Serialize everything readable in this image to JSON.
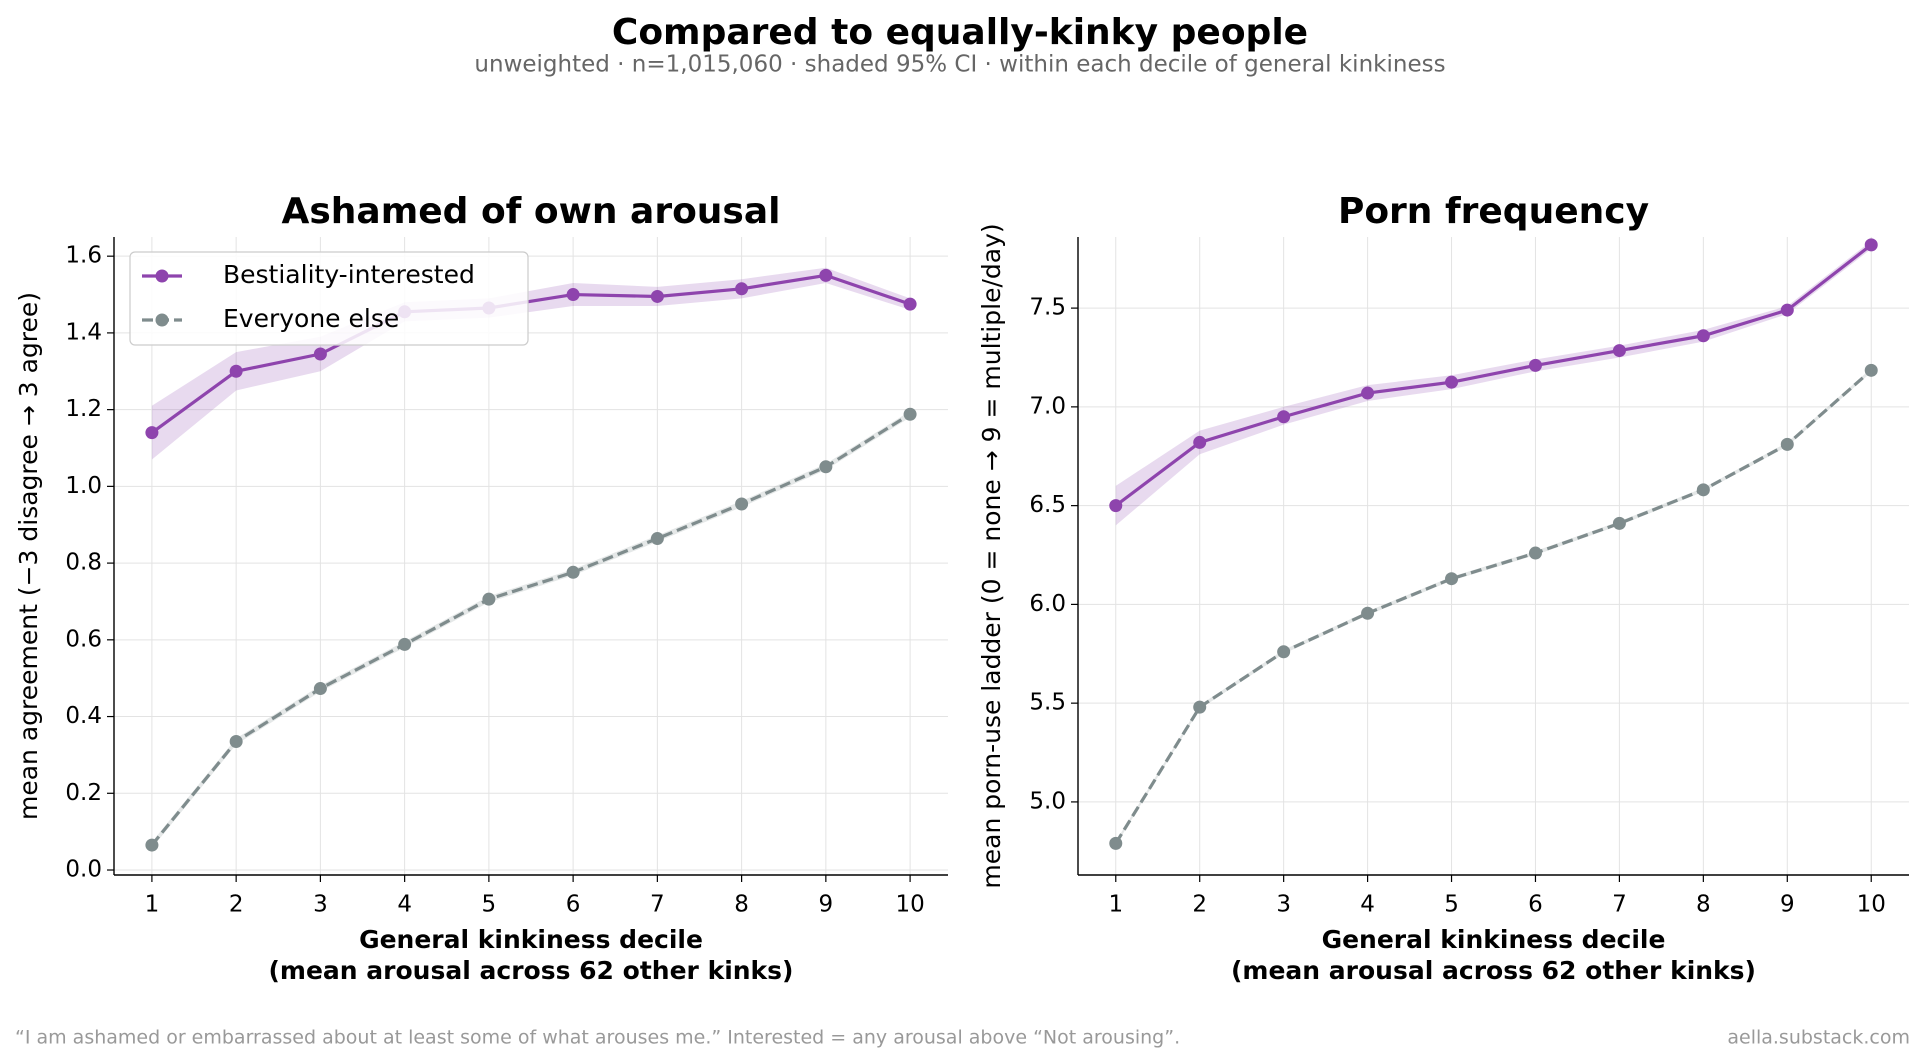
{
  "title": "Compared to equally-kinky people",
  "subtitle": "unweighted · n=1,015,060 · shaded 95% CI · within each decile of general kinkiness",
  "footnote": "“I am ashamed or embarrassed about at least some of what arouses me.” Interested = any arousal above “Not arousing”.",
  "source": "aella.substack.com",
  "chart_data": [
    {
      "type": "line",
      "title": "Ashamed of own arousal",
      "xlabel": [
        "General kinkiness decile",
        "(mean arousal across 62 other kinks)"
      ],
      "ylabel": "mean agreement (−3 disagree → 3 agree)",
      "x": [
        1,
        2,
        3,
        4,
        5,
        6,
        7,
        8,
        9,
        10
      ],
      "xlim": [
        0.55,
        10.45
      ],
      "xticks": [
        1,
        2,
        3,
        4,
        5,
        6,
        7,
        8,
        9,
        10
      ],
      "ylim": [
        -0.013,
        1.65
      ],
      "yticks": [
        {
          "value": 0,
          "label": "0.0"
        },
        0.2,
        0.4,
        0.6,
        0.8,
        {
          "value": 1,
          "label": "1.0"
        },
        1.2,
        1.4,
        1.6
      ],
      "grid": true,
      "legend": "upper left",
      "series": [
        {
          "name": "Bestiality-interested",
          "color": "#8e44ad",
          "linestyle": "solid",
          "values": [
            1.14,
            1.3,
            1.345,
            1.455,
            1.465,
            1.5,
            1.495,
            1.515,
            1.55,
            1.475
          ],
          "ci_low": [
            1.07,
            1.25,
            1.3,
            1.43,
            1.44,
            1.47,
            1.47,
            1.49,
            1.53,
            1.46
          ],
          "ci_high": [
            1.21,
            1.35,
            1.39,
            1.48,
            1.49,
            1.53,
            1.52,
            1.54,
            1.57,
            1.49
          ]
        },
        {
          "name": "Everyone else",
          "color": "#7f8c8d",
          "linestyle": "dashed",
          "values": [
            0.065,
            0.335,
            0.473,
            0.588,
            0.706,
            0.776,
            0.864,
            0.954,
            1.051,
            1.188
          ],
          "ci_low": [
            0.057,
            0.327,
            0.465,
            0.58,
            0.698,
            0.768,
            0.856,
            0.946,
            1.043,
            1.18
          ],
          "ci_high": [
            0.073,
            0.343,
            0.481,
            0.596,
            0.714,
            0.784,
            0.872,
            0.962,
            1.059,
            1.196
          ]
        }
      ]
    },
    {
      "type": "line",
      "title": "Porn frequency",
      "xlabel": [
        "General kinkiness decile",
        "(mean arousal across 62 other kinks)"
      ],
      "ylabel": "mean porn-use ladder (0 = none → 9 = multiple/day)",
      "x": [
        1,
        2,
        3,
        4,
        5,
        6,
        7,
        8,
        9,
        10
      ],
      "xlim": [
        0.55,
        10.45
      ],
      "xticks": [
        1,
        2,
        3,
        4,
        5,
        6,
        7,
        8,
        9,
        10
      ],
      "ylim": [
        4.63,
        7.86
      ],
      "yticks": [
        {
          "value": 5,
          "label": "5.0"
        },
        5.5,
        {
          "value": 6,
          "label": "6.0"
        },
        6.5,
        {
          "value": 7,
          "label": "7.0"
        },
        7.5
      ],
      "grid": true,
      "series": [
        {
          "name": "Bestiality-interested",
          "color": "#8e44ad",
          "linestyle": "solid",
          "values": [
            6.5,
            6.82,
            6.95,
            7.07,
            7.125,
            7.21,
            7.285,
            7.36,
            7.49,
            7.82
          ],
          "ci_low": [
            6.4,
            6.76,
            6.91,
            7.03,
            7.09,
            7.18,
            7.25,
            7.33,
            7.47,
            7.8
          ],
          "ci_high": [
            6.6,
            6.88,
            7.0,
            7.11,
            7.16,
            7.24,
            7.31,
            7.39,
            7.51,
            7.84
          ]
        },
        {
          "name": "Everyone else",
          "color": "#7f8c8d",
          "linestyle": "dashed",
          "values": [
            4.79,
            5.48,
            5.76,
            5.955,
            6.13,
            6.26,
            6.41,
            6.58,
            6.81,
            7.185
          ],
          "ci_low": [
            4.78,
            5.47,
            5.75,
            5.945,
            6.12,
            6.25,
            6.4,
            6.57,
            6.8,
            7.175
          ],
          "ci_high": [
            4.8,
            5.49,
            5.77,
            5.965,
            6.14,
            6.27,
            6.42,
            6.59,
            6.82,
            7.195
          ]
        }
      ]
    }
  ]
}
